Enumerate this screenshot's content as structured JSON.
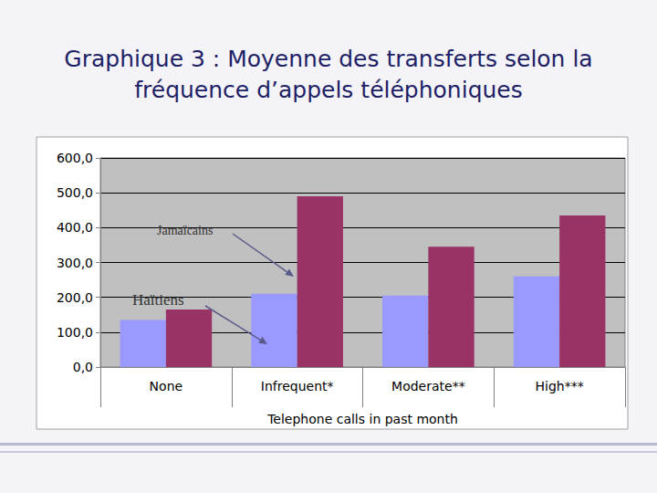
{
  "chart_data": {
    "type": "bar",
    "title": "Graphique 3 : Moyenne des transferts selon la fréquence d’appels téléphoniques",
    "x_label": "Telephone calls in past month",
    "categories": [
      "None",
      "Infrequent*",
      "Moderate**",
      "High***"
    ],
    "series": [
      {
        "name": "Haïtiens",
        "color": "#9999ff",
        "values": [
          135,
          210,
          205,
          260
        ]
      },
      {
        "name": "Jamaïcains",
        "color": "#993366",
        "values": [
          165,
          490,
          345,
          435
        ]
      }
    ],
    "ylim": [
      0,
      600
    ],
    "yticks": [
      {
        "value": 0,
        "label": "0,0"
      },
      {
        "value": 100,
        "label": "100,0"
      },
      {
        "value": 200,
        "label": "200,0"
      },
      {
        "value": 300,
        "label": "300,0"
      },
      {
        "value": 400,
        "label": "400,0"
      },
      {
        "value": 500,
        "label": "500,0"
      },
      {
        "value": 600,
        "label": "600,0"
      }
    ],
    "grid": true
  }
}
